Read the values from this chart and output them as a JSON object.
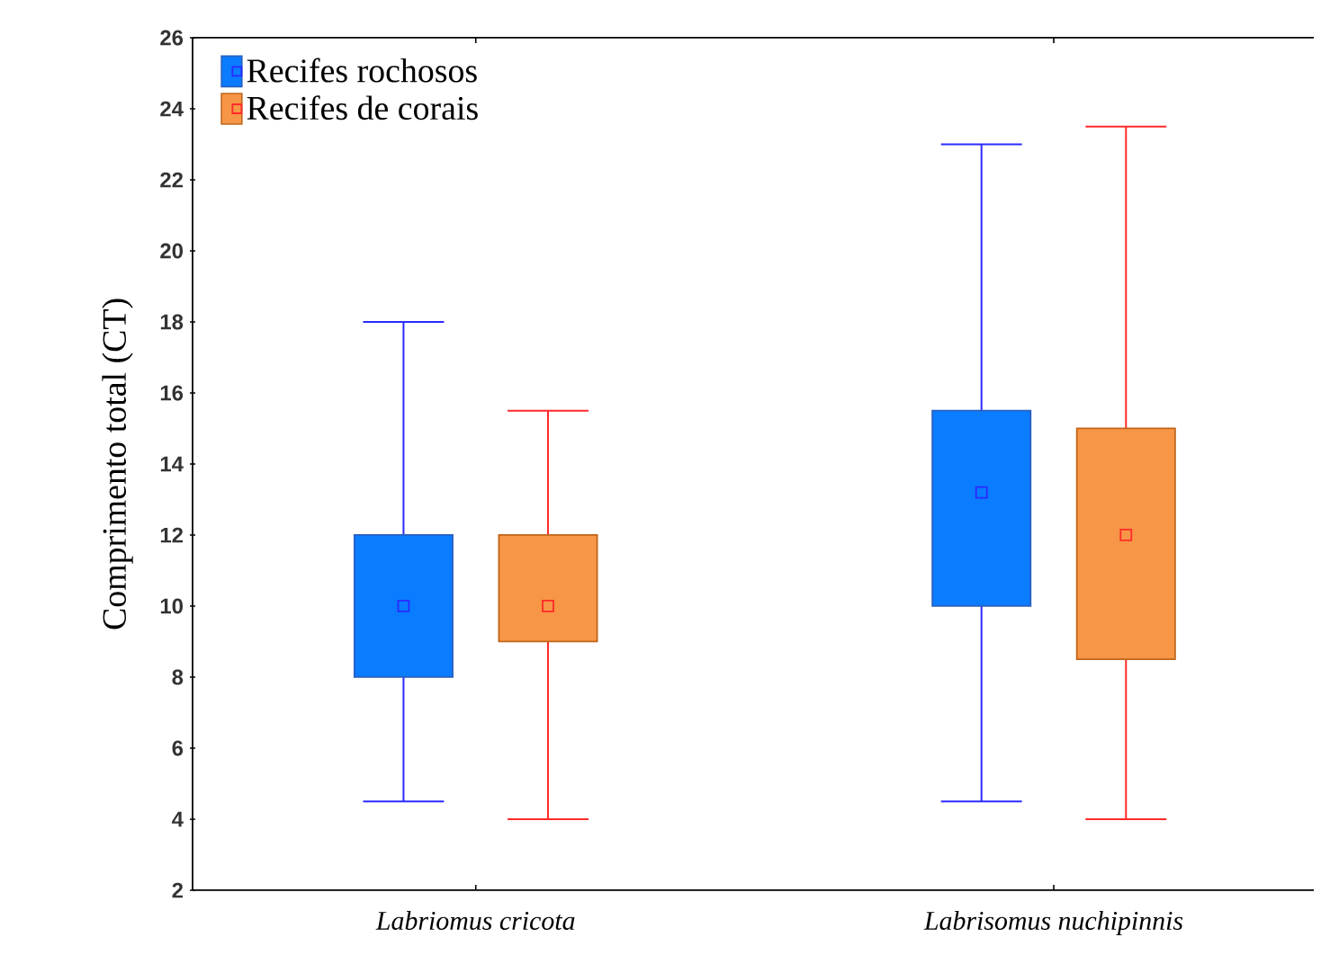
{
  "chart_data": {
    "type": "box",
    "ylabel": "Comprimento total (CT)",
    "categories": [
      "Labriomus cricota",
      "Labrisomus nuchipinnis"
    ],
    "ylim": [
      2,
      26
    ],
    "yticks": [
      2,
      4,
      6,
      8,
      10,
      12,
      14,
      16,
      18,
      20,
      22,
      24,
      26
    ],
    "legend": "top left",
    "grid": false,
    "marker": "square",
    "series": [
      {
        "name": "Recifes rochosos",
        "color": "#0a7cff",
        "boxes": [
          {
            "low": 4.5,
            "q1": 8,
            "median": 10,
            "q3": 12,
            "high": 18
          },
          {
            "low": 4.5,
            "q1": 10,
            "median": 13.2,
            "q3": 15.5,
            "high": 23
          }
        ]
      },
      {
        "name": "Recifes de corais",
        "color": "#f79646",
        "boxes": [
          {
            "low": 4,
            "q1": 9,
            "median": 10,
            "q3": 12,
            "high": 15.5
          },
          {
            "low": 4,
            "q1": 8.5,
            "median": 12,
            "q3": 15,
            "high": 23.5
          }
        ]
      }
    ]
  }
}
